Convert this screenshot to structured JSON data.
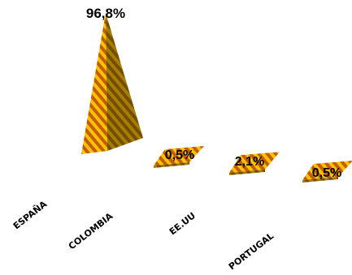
{
  "chart_data": {
    "type": "bar",
    "style": "3d-pyramid",
    "categories": [
      "ESPAÑA",
      "COLOMBIA",
      "EE.UU",
      "PORTUGAL"
    ],
    "values": [
      96.8,
      0.5,
      2.1,
      0.5
    ],
    "data_labels": [
      "96,8%",
      "0,5%",
      "2,1%",
      "0,5%"
    ],
    "unit": "%",
    "ylim": [
      0,
      100
    ],
    "grid": false,
    "legend": "none",
    "colors": {
      "stripe_light": "#f7c400",
      "stripe_dark": "#c85a00",
      "shade_light": "#a08000",
      "shade_dark": "#7a4a00"
    }
  }
}
